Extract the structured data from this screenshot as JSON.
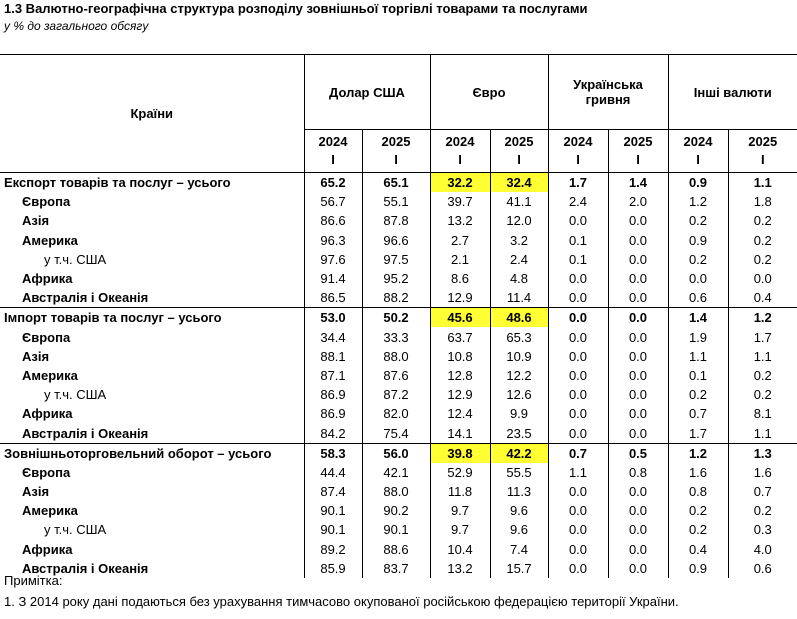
{
  "title": "1.3 Валютно-географічна структура розподілу зовнішньої торгівлі товарами та послугами",
  "subtitle": "у % до загального обсягу",
  "header": {
    "countries": "Країни",
    "groups": [
      "Долар США",
      "Євро",
      "Українська гривня",
      "Інші валюти"
    ],
    "years": [
      "2024",
      "2025",
      "2024",
      "2025",
      "2024",
      "2025",
      "2024",
      "2025"
    ],
    "quarter": "I"
  },
  "highlight_color": "#ffff33",
  "rows": [
    {
      "name": "Експорт товарів та послуг – усього",
      "level": 0,
      "values": [
        "65.2",
        "65.1",
        "32.2",
        "32.4",
        "1.7",
        "1.4",
        "0.9",
        "1.1"
      ],
      "highlight": [
        2,
        3
      ]
    },
    {
      "name": "Європа",
      "level": 1,
      "values": [
        "56.7",
        "55.1",
        "39.7",
        "41.1",
        "2.4",
        "2.0",
        "1.2",
        "1.8"
      ]
    },
    {
      "name": "Азія",
      "level": 1,
      "values": [
        "86.6",
        "87.8",
        "13.2",
        "12.0",
        "0.0",
        "0.0",
        "0.2",
        "0.2"
      ]
    },
    {
      "name": "Америка",
      "level": 1,
      "values": [
        "96.3",
        "96.6",
        "2.7",
        "3.2",
        "0.1",
        "0.0",
        "0.9",
        "0.2"
      ]
    },
    {
      "name": "у т.ч. США",
      "level": 2,
      "values": [
        "97.6",
        "97.5",
        "2.1",
        "2.4",
        "0.1",
        "0.0",
        "0.2",
        "0.2"
      ]
    },
    {
      "name": "Африка",
      "level": 1,
      "values": [
        "91.4",
        "95.2",
        "8.6",
        "4.8",
        "0.0",
        "0.0",
        "0.0",
        "0.0"
      ]
    },
    {
      "name": "Австралія і Океанія",
      "level": 1,
      "values": [
        "86.5",
        "88.2",
        "12.9",
        "11.4",
        "0.0",
        "0.0",
        "0.6",
        "0.4"
      ]
    },
    {
      "name": "Імпорт товарів та послуг – усього",
      "level": 0,
      "values": [
        "53.0",
        "50.2",
        "45.6",
        "48.6",
        "0.0",
        "0.0",
        "1.4",
        "1.2"
      ],
      "highlight": [
        2,
        3
      ]
    },
    {
      "name": "Європа",
      "level": 1,
      "values": [
        "34.4",
        "33.3",
        "63.7",
        "65.3",
        "0.0",
        "0.0",
        "1.9",
        "1.7"
      ]
    },
    {
      "name": "Азія",
      "level": 1,
      "values": [
        "88.1",
        "88.0",
        "10.8",
        "10.9",
        "0.0",
        "0.0",
        "1.1",
        "1.1"
      ]
    },
    {
      "name": "Америка",
      "level": 1,
      "values": [
        "87.1",
        "87.6",
        "12.8",
        "12.2",
        "0.0",
        "0.0",
        "0.1",
        "0.2"
      ]
    },
    {
      "name": "у т.ч. США",
      "level": 2,
      "values": [
        "86.9",
        "87.2",
        "12.9",
        "12.6",
        "0.0",
        "0.0",
        "0.2",
        "0.2"
      ]
    },
    {
      "name": "Африка",
      "level": 1,
      "values": [
        "86.9",
        "82.0",
        "12.4",
        "9.9",
        "0.0",
        "0.0",
        "0.7",
        "8.1"
      ]
    },
    {
      "name": "Австралія і Океанія",
      "level": 1,
      "values": [
        "84.2",
        "75.4",
        "14.1",
        "23.5",
        "0.0",
        "0.0",
        "1.7",
        "1.1"
      ]
    },
    {
      "name": "Зовнішньоторговельний оборот  – усього",
      "level": 0,
      "values": [
        "58.3",
        "56.0",
        "39.8",
        "42.2",
        "0.7",
        "0.5",
        "1.2",
        "1.3"
      ],
      "highlight": [
        2,
        3
      ]
    },
    {
      "name": "Європа",
      "level": 1,
      "values": [
        "44.4",
        "42.1",
        "52.9",
        "55.5",
        "1.1",
        "0.8",
        "1.6",
        "1.6"
      ]
    },
    {
      "name": "Азія",
      "level": 1,
      "values": [
        "87.4",
        "88.0",
        "11.8",
        "11.3",
        "0.0",
        "0.0",
        "0.8",
        "0.7"
      ]
    },
    {
      "name": "Америка",
      "level": 1,
      "values": [
        "90.1",
        "90.2",
        "9.7",
        "9.6",
        "0.0",
        "0.0",
        "0.2",
        "0.2"
      ]
    },
    {
      "name": "у т.ч. США",
      "level": 2,
      "values": [
        "90.1",
        "90.1",
        "9.7",
        "9.6",
        "0.0",
        "0.0",
        "0.2",
        "0.3"
      ]
    },
    {
      "name": "Африка",
      "level": 1,
      "values": [
        "89.2",
        "88.6",
        "10.4",
        "7.4",
        "0.0",
        "0.0",
        "0.4",
        "4.0"
      ]
    },
    {
      "name": "Австралія і Океанія",
      "level": 1,
      "values": [
        "85.9",
        "83.7",
        "13.2",
        "15.7",
        "0.0",
        "0.0",
        "0.9",
        "0.6"
      ]
    }
  ],
  "notes": {
    "label": "Примітка:",
    "text": "1. З 2014 року дані подаються без урахування тимчасово окупованої російською федерацією території України."
  }
}
